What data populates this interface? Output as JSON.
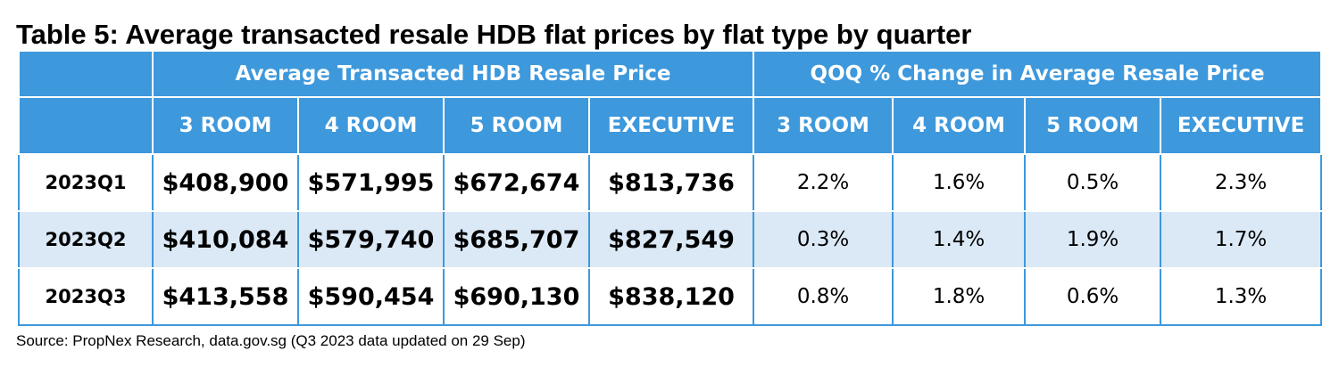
{
  "title": "Table 5: Average transacted resale HDB flat prices by flat type by quarter",
  "table": {
    "group_headers": [
      "Average Transacted HDB Resale Price",
      "QOQ % Change in Average Resale Price"
    ],
    "columns": [
      "3 ROOM",
      "4 ROOM",
      "5 ROOM",
      "EXECUTIVE",
      "3 ROOM",
      "4 ROOM",
      "5 ROOM",
      "EXECUTIVE"
    ],
    "rows": [
      {
        "quarter": "2023Q1",
        "prices": [
          "$408,900",
          "$571,995",
          "$672,674",
          "$813,736"
        ],
        "changes": [
          "2.2%",
          "1.6%",
          "0.5%",
          "2.3%"
        ]
      },
      {
        "quarter": "2023Q2",
        "prices": [
          "$410,084",
          "$579,740",
          "$685,707",
          "$827,549"
        ],
        "changes": [
          "0.3%",
          "1.4%",
          "1.9%",
          "1.7%"
        ]
      },
      {
        "quarter": "2023Q3",
        "prices": [
          "$413,558",
          "$590,454",
          "$690,130",
          "$838,120"
        ],
        "changes": [
          "0.8%",
          "1.8%",
          "0.6%",
          "1.3%"
        ]
      }
    ]
  },
  "source": "Source: PropNex Research, data.gov.sg (Q3 2023 data updated on 29 Sep)",
  "colors": {
    "header_blue": "#3d98dc",
    "band_blue": "#dbe9f7",
    "header_text": "#ffffff"
  }
}
